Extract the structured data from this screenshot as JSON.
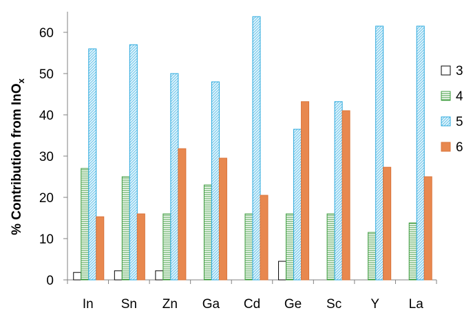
{
  "chart_data": {
    "type": "bar",
    "ylabel": "% Contribution from InO",
    "ylabel_sub": "x",
    "ylim": [
      0,
      65
    ],
    "yticks": [
      0,
      10,
      20,
      30,
      40,
      50,
      60
    ],
    "categories": [
      "In",
      "Sn",
      "Zn",
      "Ga",
      "Cd",
      "Ge",
      "Sc",
      "Y",
      "La"
    ],
    "legend_position": "right",
    "series": [
      {
        "name": "3",
        "values": [
          1.8,
          2.2,
          2.2,
          0,
          0,
          4.5,
          0,
          0,
          0
        ],
        "fill": "#ffffff",
        "stroke": "#000000",
        "pattern": "none"
      },
      {
        "name": "4",
        "values": [
          27,
          25,
          16,
          23,
          16,
          16,
          16,
          11.5,
          13.8
        ],
        "fill": "#ffffff",
        "stroke": "#3a9a3a",
        "pattern": "hlines"
      },
      {
        "name": "5",
        "values": [
          56,
          57,
          50,
          48,
          63.8,
          36.5,
          43.2,
          61.5,
          61.5
        ],
        "fill": "#dff2fb",
        "stroke": "#2aa8dd",
        "pattern": "diag"
      },
      {
        "name": "6",
        "values": [
          15.3,
          16,
          31.8,
          29.5,
          20.5,
          43.2,
          41,
          27.3,
          25
        ],
        "fill": "#e8884f",
        "stroke": "#d9733a",
        "pattern": "none"
      }
    ]
  }
}
